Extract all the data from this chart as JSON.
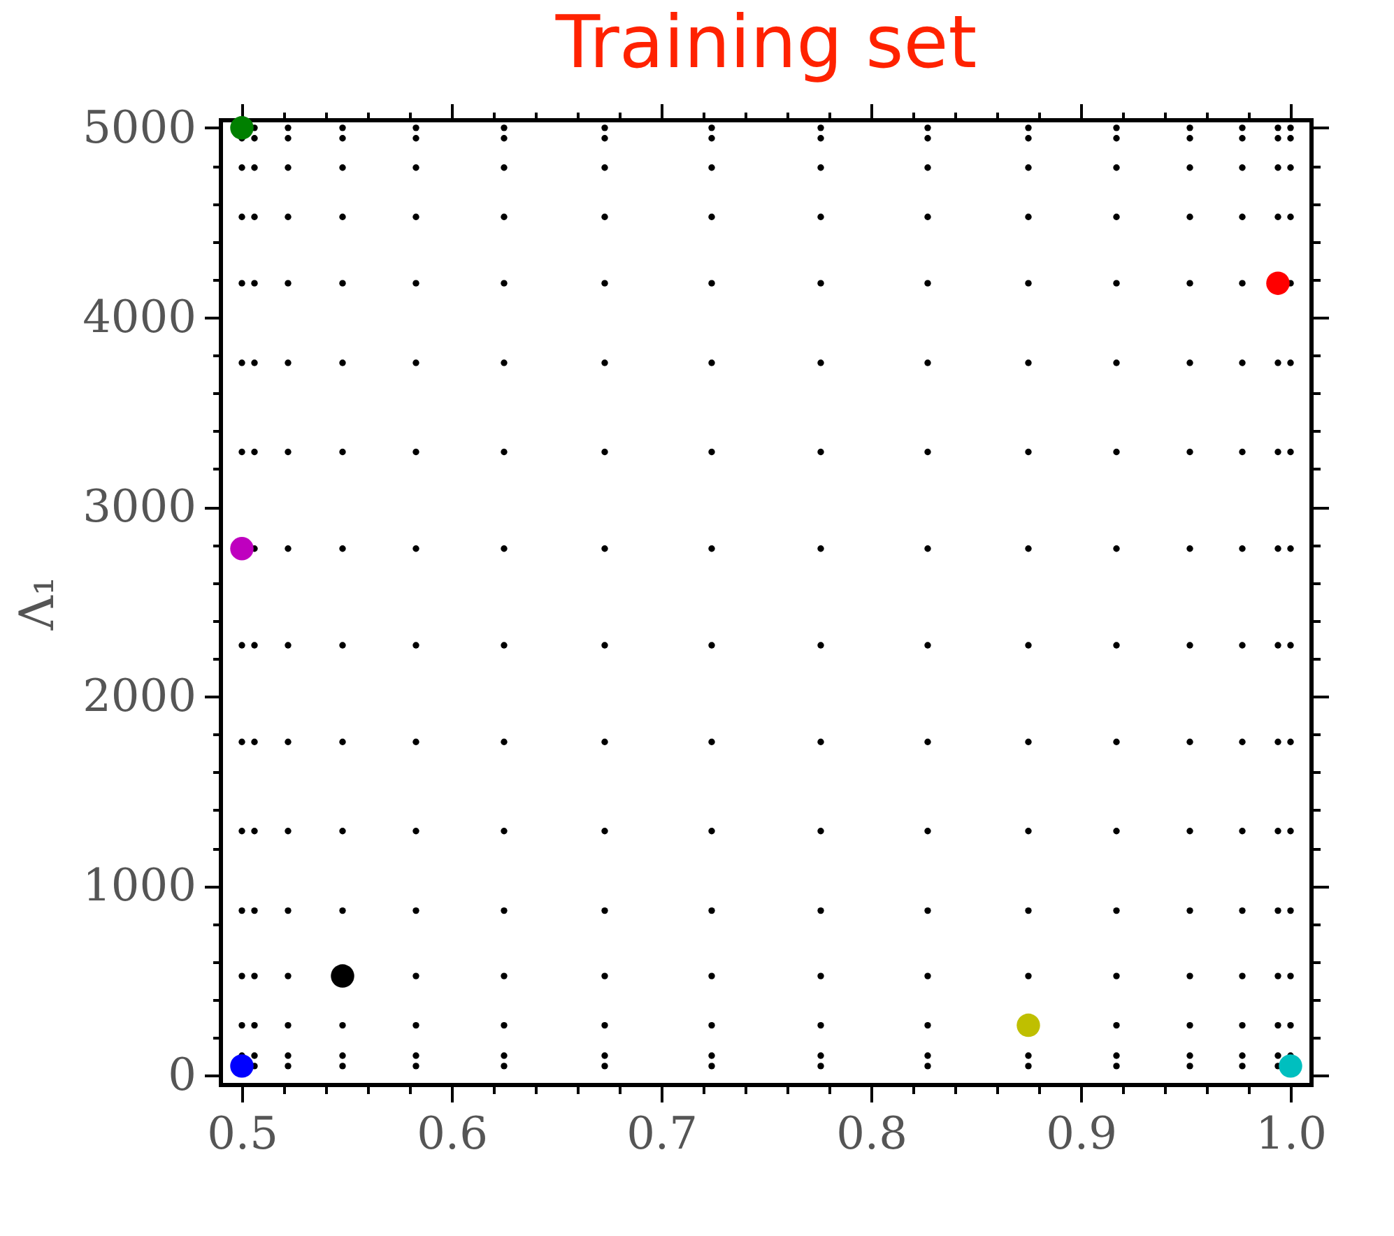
{
  "chart_data": {
    "type": "scatter",
    "title": "Training set",
    "ylabel": "Λ₁",
    "marker": "circle",
    "grid": false,
    "xlim": [
      0.49,
      1.01
    ],
    "ylim": [
      -50,
      5040
    ],
    "xticks": [
      0.5,
      {
        "value": 0.52,
        "label": null
      },
      {
        "value": 0.54,
        "label": null
      },
      {
        "value": 0.56,
        "label": null
      },
      {
        "value": 0.58,
        "label": null
      },
      0.6,
      {
        "value": 0.62,
        "label": null
      },
      {
        "value": 0.64,
        "label": null
      },
      {
        "value": 0.66,
        "label": null
      },
      {
        "value": 0.68,
        "label": null
      },
      0.7,
      {
        "value": 0.72,
        "label": null
      },
      {
        "value": 0.74,
        "label": null
      },
      {
        "value": 0.76,
        "label": null
      },
      {
        "value": 0.78,
        "label": null
      },
      0.8,
      {
        "value": 0.82,
        "label": null
      },
      {
        "value": 0.84,
        "label": null
      },
      {
        "value": 0.86,
        "label": null
      },
      {
        "value": 0.88,
        "label": null
      },
      0.9,
      {
        "value": 0.92,
        "label": null
      },
      {
        "value": 0.94,
        "label": null
      },
      {
        "value": 0.96,
        "label": null
      },
      {
        "value": 0.98,
        "label": null
      },
      {
        "value": 1.0,
        "label": "1.0"
      }
    ],
    "yticks": [
      0,
      {
        "value": 200,
        "label": null
      },
      {
        "value": 400,
        "label": null
      },
      {
        "value": 600,
        "label": null
      },
      {
        "value": 800,
        "label": null
      },
      1000,
      {
        "value": 1200,
        "label": null
      },
      {
        "value": 1400,
        "label": null
      },
      {
        "value": 1600,
        "label": null
      },
      {
        "value": 1800,
        "label": null
      },
      2000,
      {
        "value": 2200,
        "label": null
      },
      {
        "value": 2400,
        "label": null
      },
      {
        "value": 2600,
        "label": null
      },
      {
        "value": 2800,
        "label": null
      },
      3000,
      {
        "value": 3200,
        "label": null
      },
      {
        "value": 3400,
        "label": null
      },
      {
        "value": 3600,
        "label": null
      },
      {
        "value": 3800,
        "label": null
      },
      4000,
      {
        "value": 4200,
        "label": null
      },
      {
        "value": 4400,
        "label": null
      },
      {
        "value": 4600,
        "label": null
      },
      {
        "value": 4800,
        "label": null
      },
      5000
    ],
    "series": [
      {
        "color": "#000000",
        "x": [
          0.506,
          0.522,
          0.548,
          0.583,
          0.625,
          0.673,
          0.724,
          0.776,
          0.827,
          0.875,
          0.917,
          0.952,
          0.977,
          0.994,
          0.5,
          0.506,
          0.522,
          0.548,
          0.583,
          0.625,
          0.673,
          0.724,
          0.776,
          0.827,
          0.875,
          0.917,
          0.952,
          0.977,
          0.994,
          1.0,
          0.5,
          0.506,
          0.522,
          0.548,
          0.583,
          0.625,
          0.673,
          0.724,
          0.776,
          0.827,
          0.917,
          0.952,
          0.977,
          0.994,
          1.0,
          0.5,
          0.506,
          0.522,
          0.583,
          0.625,
          0.673,
          0.724,
          0.776,
          0.827,
          0.875,
          0.917,
          0.952,
          0.977,
          0.994,
          1.0,
          0.5,
          0.506,
          0.522,
          0.548,
          0.583,
          0.625,
          0.673,
          0.724,
          0.776,
          0.827,
          0.875,
          0.917,
          0.952,
          0.977,
          0.994,
          1.0,
          0.5,
          0.506,
          0.522,
          0.548,
          0.583,
          0.625,
          0.673,
          0.724,
          0.776,
          0.827,
          0.875,
          0.917,
          0.952,
          0.977,
          0.994,
          1.0,
          0.5,
          0.506,
          0.522,
          0.548,
          0.583,
          0.625,
          0.673,
          0.724,
          0.776,
          0.827,
          0.875,
          0.917,
          0.952,
          0.977,
          0.994,
          1.0,
          0.5,
          0.506,
          0.522,
          0.548,
          0.583,
          0.625,
          0.673,
          0.724,
          0.776,
          0.827,
          0.875,
          0.917,
          0.952,
          0.977,
          0.994,
          1.0,
          0.506,
          0.522,
          0.548,
          0.583,
          0.625,
          0.673,
          0.724,
          0.776,
          0.827,
          0.875,
          0.917,
          0.952,
          0.977,
          0.994,
          1.0,
          0.5,
          0.506,
          0.522,
          0.548,
          0.583,
          0.625,
          0.673,
          0.724,
          0.776,
          0.827,
          0.875,
          0.917,
          0.952,
          0.977,
          0.994,
          1.0,
          0.5,
          0.506,
          0.522,
          0.548,
          0.583,
          0.625,
          0.673,
          0.724,
          0.776,
          0.827,
          0.875,
          0.917,
          0.952,
          0.977,
          0.994,
          1.0,
          0.5,
          0.506,
          0.522,
          0.548,
          0.583,
          0.625,
          0.673,
          0.724,
          0.776,
          0.827,
          0.875,
          0.917,
          0.952,
          0.977,
          1.0,
          0.5,
          0.506,
          0.522,
          0.548,
          0.583,
          0.625,
          0.673,
          0.724,
          0.776,
          0.827,
          0.875,
          0.917,
          0.952,
          0.977,
          0.994,
          1.0,
          0.5,
          0.506,
          0.522,
          0.548,
          0.583,
          0.625,
          0.673,
          0.724,
          0.776,
          0.827,
          0.875,
          0.917,
          0.952,
          0.977,
          0.994,
          1.0,
          0.5,
          0.506,
          0.522,
          0.548,
          0.583,
          0.625,
          0.673,
          0.724,
          0.776,
          0.827,
          0.875,
          0.917,
          0.952,
          0.977,
          0.994,
          1.0,
          0.506,
          0.522,
          0.548,
          0.583,
          0.625,
          0.673,
          0.724,
          0.776,
          0.827,
          0.875,
          0.917,
          0.952,
          0.977,
          0.994,
          1.0
        ],
        "values": [
          50,
          50,
          50,
          50,
          50,
          50,
          50,
          50,
          50,
          50,
          50,
          50,
          50,
          50,
          105,
          105,
          105,
          105,
          105,
          105,
          105,
          105,
          105,
          105,
          105,
          105,
          105,
          105,
          105,
          105,
          265,
          265,
          265,
          265,
          265,
          265,
          265,
          265,
          265,
          265,
          265,
          265,
          265,
          265,
          265,
          525,
          525,
          525,
          525,
          525,
          525,
          525,
          525,
          525,
          525,
          525,
          525,
          525,
          525,
          525,
          870,
          870,
          870,
          870,
          870,
          870,
          870,
          870,
          870,
          870,
          870,
          870,
          870,
          870,
          870,
          870,
          1290,
          1290,
          1290,
          1290,
          1290,
          1290,
          1290,
          1290,
          1290,
          1290,
          1290,
          1290,
          1290,
          1290,
          1290,
          1290,
          1760,
          1760,
          1760,
          1760,
          1760,
          1760,
          1760,
          1760,
          1760,
          1760,
          1760,
          1760,
          1760,
          1760,
          1760,
          1760,
          2270,
          2270,
          2270,
          2270,
          2270,
          2270,
          2270,
          2270,
          2270,
          2270,
          2270,
          2270,
          2270,
          2270,
          2270,
          2270,
          2780,
          2780,
          2780,
          2780,
          2780,
          2780,
          2780,
          2780,
          2780,
          2780,
          2780,
          2780,
          2780,
          2780,
          2780,
          3290,
          3290,
          3290,
          3290,
          3290,
          3290,
          3290,
          3290,
          3290,
          3290,
          3290,
          3290,
          3290,
          3290,
          3290,
          3290,
          3760,
          3760,
          3760,
          3760,
          3760,
          3760,
          3760,
          3760,
          3760,
          3760,
          3760,
          3760,
          3760,
          3760,
          3760,
          3760,
          4180,
          4180,
          4180,
          4180,
          4180,
          4180,
          4180,
          4180,
          4180,
          4180,
          4180,
          4180,
          4180,
          4180,
          4180,
          4530,
          4530,
          4530,
          4530,
          4530,
          4530,
          4530,
          4530,
          4530,
          4530,
          4530,
          4530,
          4530,
          4530,
          4530,
          4530,
          4790,
          4790,
          4790,
          4790,
          4790,
          4790,
          4790,
          4790,
          4790,
          4790,
          4790,
          4790,
          4790,
          4790,
          4790,
          4790,
          4945,
          4945,
          4945,
          4945,
          4945,
          4945,
          4945,
          4945,
          4945,
          4945,
          4945,
          4945,
          4945,
          4945,
          4945,
          4945,
          5000,
          5000,
          5000,
          5000,
          5000,
          5000,
          5000,
          5000,
          5000,
          5000,
          5000,
          5000,
          5000,
          5000,
          5000
        ]
      },
      {
        "color": "#008000",
        "x": [
          0.5
        ],
        "values": [
          5000
        ]
      },
      {
        "color": "#bf00bf",
        "x": [
          0.5
        ],
        "values": [
          2780
        ]
      },
      {
        "color": "#ff0000",
        "x": [
          0.994
        ],
        "values": [
          4180
        ]
      },
      {
        "color": "#0000ff",
        "x": [
          0.5
        ],
        "values": [
          50
        ]
      },
      {
        "color": "#000000",
        "x": [
          0.548
        ],
        "values": [
          525
        ]
      },
      {
        "color": "#bfbf00",
        "x": [
          0.875
        ],
        "values": [
          265
        ]
      },
      {
        "color": "#00bfbf",
        "x": [
          1.0
        ],
        "values": [
          50
        ]
      }
    ]
  }
}
